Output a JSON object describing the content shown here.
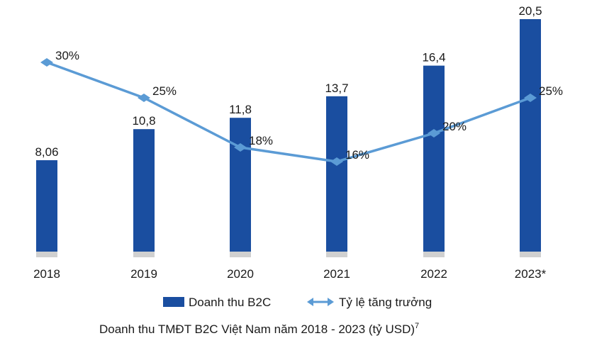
{
  "chart_data": {
    "type": "bar",
    "categories": [
      "2018",
      "2019",
      "2020",
      "2021",
      "2022",
      "2023*"
    ],
    "series": [
      {
        "name": "Doanh thu B2C",
        "type": "bar",
        "values": [
          8.06,
          10.8,
          11.8,
          13.7,
          16.4,
          20.5
        ],
        "labels": [
          "8,06",
          "10,8",
          "11,8",
          "13,7",
          "16,4",
          "20,5"
        ],
        "color": "#1a4ea0"
      },
      {
        "name": "Tỷ lệ tăng trưởng",
        "type": "line",
        "values": [
          30,
          25,
          18,
          16,
          20,
          25
        ],
        "labels": [
          "30%",
          "25%",
          "18%",
          "16%",
          "20%",
          "25%"
        ],
        "color": "#5b9bd5"
      }
    ],
    "title": "Doanh thu TMĐT B2C Việt Nam năm 2018 - 2023 (tỷ USD)",
    "title_superscript": "7",
    "legend_position": "bottom",
    "grid": false
  }
}
